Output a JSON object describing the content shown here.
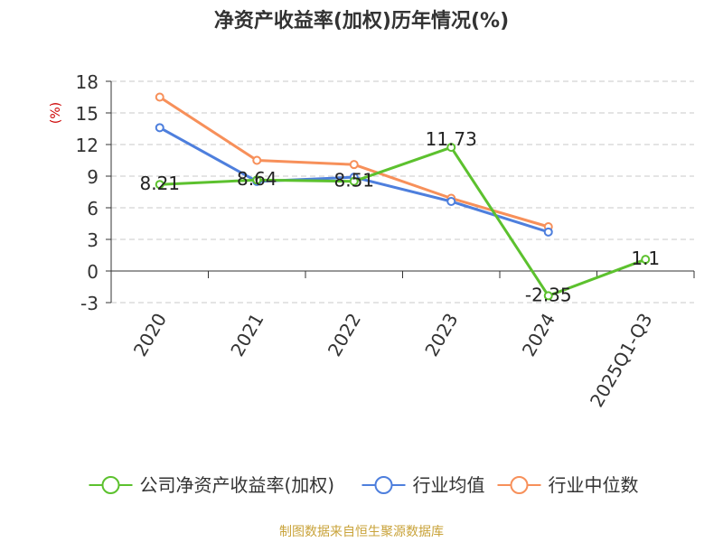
{
  "chart_data": {
    "type": "line",
    "title": "净资产收益率(加权)历年情况(%)",
    "ylabel": "(%)",
    "xlabel": "",
    "categories": [
      "2020",
      "2021",
      "2022",
      "2023",
      "2024",
      "2025Q1-Q3"
    ],
    "yticks": [
      "18",
      "15",
      "12",
      "9",
      "6",
      "3",
      "0",
      "-3"
    ],
    "ylim": [
      -3,
      18
    ],
    "grid": true,
    "legend_position": "bottom",
    "series": [
      {
        "name": "公司净资产收益率(加权)",
        "color": "#5cc12e",
        "values": [
          8.21,
          8.64,
          8.51,
          11.73,
          -2.35,
          1.1
        ],
        "labels": [
          "8.21",
          "8.64",
          "8.51",
          "11.73",
          "-2.35",
          "1.1"
        ]
      },
      {
        "name": "行业均值",
        "color": "#4e7fdd",
        "values": [
          13.6,
          8.5,
          8.9,
          6.6,
          3.7,
          null
        ]
      },
      {
        "name": "行业中位数",
        "color": "#f7905a",
        "values": [
          16.5,
          10.5,
          10.1,
          6.9,
          4.2,
          null
        ]
      }
    ]
  },
  "footer": {
    "source": "制图数据来自恒生聚源数据库",
    "color": "#c9a33a"
  }
}
